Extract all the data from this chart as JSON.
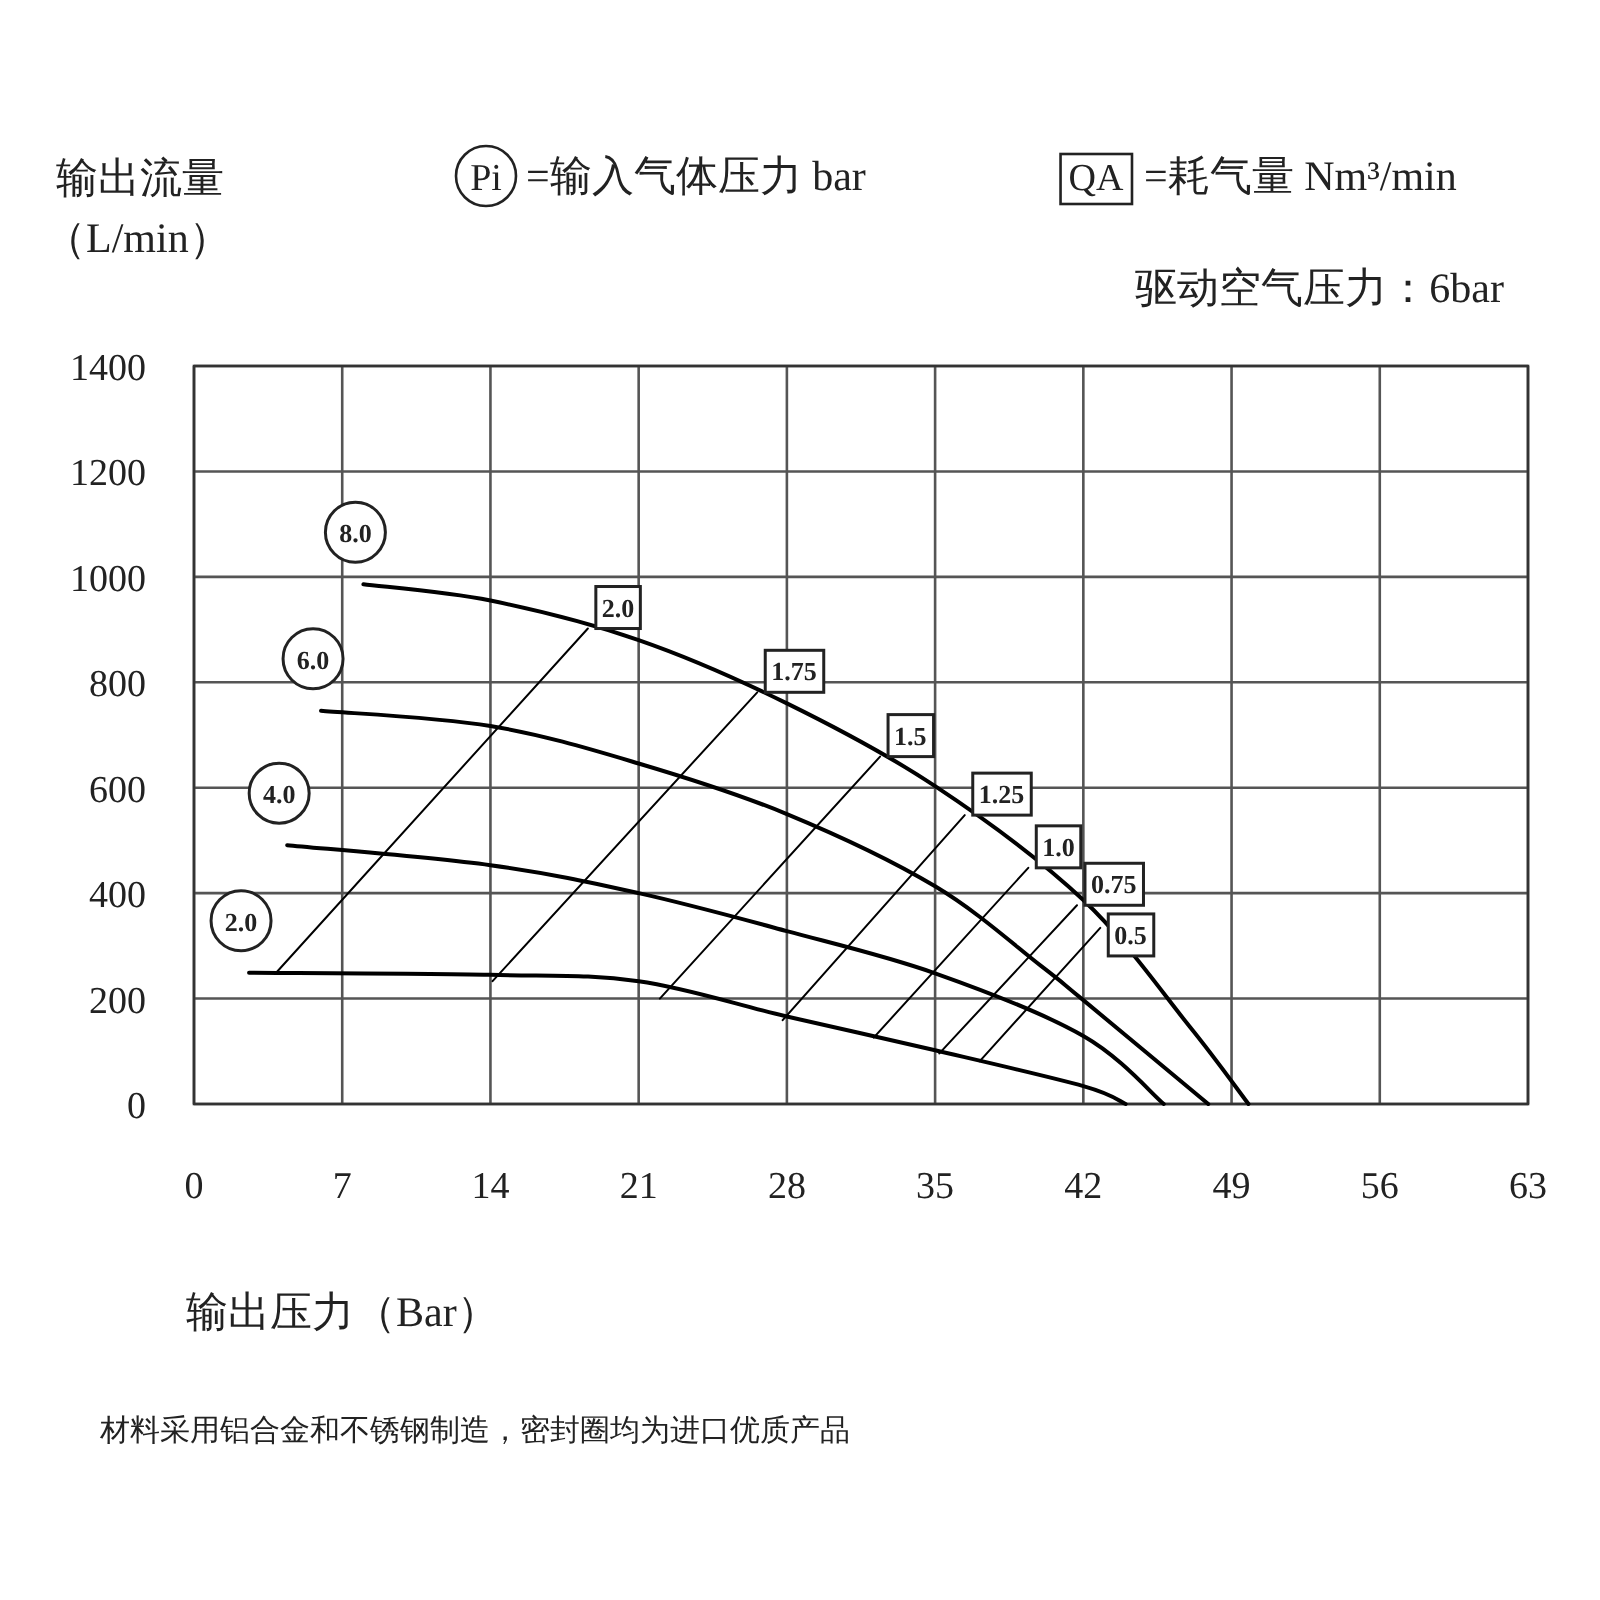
{
  "chart_data": {
    "type": "line",
    "ylabel": "输出流量（L/min）",
    "xlabel": "输出压力（Bar）",
    "annotations": [
      "Pi",
      "=输入气体压力 bar",
      "QA",
      "=耗气量 Nm³/min",
      "驱动空气压力：6bar",
      "材料采用铝合金和不锈钢制造，密封圈均为进口优质产品"
    ],
    "xlim": [
      0,
      63
    ],
    "xticks": [
      0,
      7,
      14,
      21,
      28,
      35,
      42,
      49,
      56,
      63
    ],
    "ylim": [
      0,
      1400
    ],
    "yticks": [
      0,
      200,
      400,
      600,
      800,
      1000,
      1200,
      1400
    ],
    "grid": true,
    "series": [
      {
        "name": "8.0",
        "color": "#000000",
        "x": [
          8.0,
          14,
          21,
          28,
          35,
          42,
          47,
          49.8
        ],
        "values": [
          986,
          955,
          880,
          760,
          603,
          387,
          148,
          0
        ]
      },
      {
        "name": "6.0",
        "color": "#000000",
        "x": [
          6.0,
          14,
          21,
          28,
          35,
          40,
          42,
          47.9
        ],
        "values": [
          746,
          717,
          646,
          550,
          413,
          262,
          197,
          0
        ]
      },
      {
        "name": "4.0",
        "color": "#000000",
        "x": [
          4.4,
          14,
          21,
          28,
          35,
          42,
          45.8
        ],
        "values": [
          491,
          453,
          400,
          328,
          248,
          129,
          0
        ]
      },
      {
        "name": "2.0",
        "color": "#000000",
        "x": [
          2.6,
          14,
          21,
          28,
          35,
          42,
          44
        ],
        "values": [
          249,
          245,
          233,
          166,
          102,
          34,
          0
        ]
      },
      {
        "name": "2.0",
        "color": "#000000",
        "x": [
          3.9,
          18.6
        ],
        "values": [
          250,
          902
        ]
      },
      {
        "name": "1.75",
        "color": "#000000",
        "x": [
          14.1,
          26.6
        ],
        "values": [
          233,
          781
        ]
      },
      {
        "name": "1.5",
        "color": "#000000",
        "x": [
          22.0,
          32.4
        ],
        "values": [
          200,
          659
        ]
      },
      {
        "name": "1.25",
        "color": "#000000",
        "x": [
          27.8,
          36.4
        ],
        "values": [
          159,
          548
        ]
      },
      {
        "name": "1.0",
        "color": "#000000",
        "x": [
          32.1,
          39.4
        ],
        "values": [
          126,
          448
        ]
      },
      {
        "name": "0.75",
        "color": "#000000",
        "x": [
          35.2,
          41.7
        ],
        "values": [
          96,
          377
        ]
      },
      {
        "name": "0.5",
        "color": "#000000",
        "x": [
          37.1,
          42.8
        ],
        "values": [
          81,
          334
        ]
      }
    ]
  }
}
